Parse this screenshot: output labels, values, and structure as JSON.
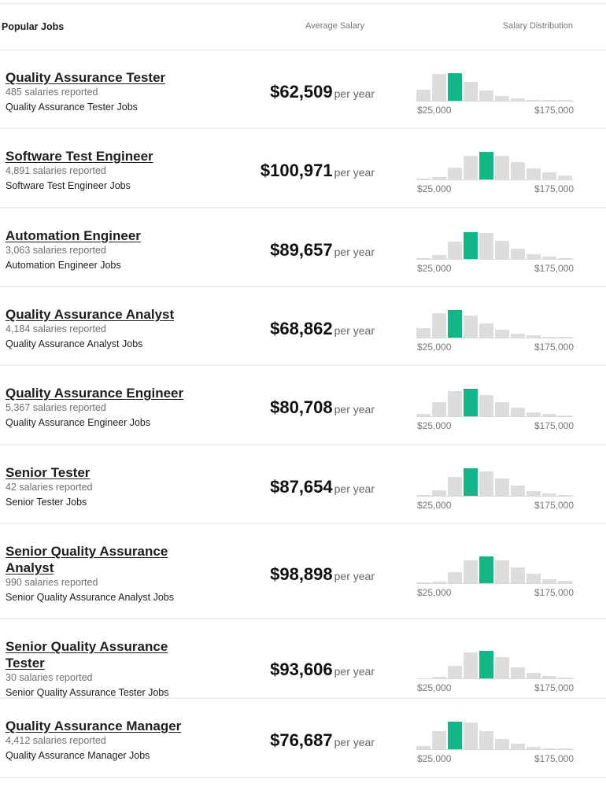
{
  "header": {
    "popular_jobs": "Popular Jobs",
    "average_salary": "Average Salary",
    "salary_distribution": "Salary Distribution"
  },
  "colors": {
    "highlight_bar": "#11b686",
    "bar": "#dddddd"
  },
  "chart_data": [
    {
      "type": "bar",
      "job": "Quality Assurance Tester",
      "values": [
        0.4,
        0.95,
        0.97,
        0.66,
        0.36,
        0.17,
        0.08,
        0.04,
        0.03,
        0.02
      ],
      "highlight_index": 2,
      "xmin_label": "$25,000",
      "xmax_label": "$175,000"
    },
    {
      "type": "bar",
      "job": "Software Test Engineer",
      "values": [
        0.03,
        0.08,
        0.42,
        0.82,
        0.96,
        0.82,
        0.6,
        0.4,
        0.26,
        0.14
      ],
      "highlight_index": 4,
      "xmin_label": "$25,000",
      "xmax_label": "$175,000"
    },
    {
      "type": "bar",
      "job": "Automation Engineer",
      "values": [
        0.03,
        0.13,
        0.6,
        0.95,
        0.93,
        0.64,
        0.37,
        0.18,
        0.08,
        0.04
      ],
      "highlight_index": 3,
      "xmin_label": "$25,000",
      "xmax_label": "$175,000"
    },
    {
      "type": "bar",
      "job": "Quality Assurance Analyst",
      "values": [
        0.34,
        0.86,
        0.97,
        0.78,
        0.5,
        0.27,
        0.15,
        0.07,
        0.04,
        0.02
      ],
      "highlight_index": 2,
      "xmin_label": "$25,000",
      "xmax_label": "$175,000"
    },
    {
      "type": "bar",
      "job": "Quality Assurance Engineer",
      "values": [
        0.09,
        0.49,
        0.9,
        0.97,
        0.74,
        0.49,
        0.31,
        0.15,
        0.08,
        0.04
      ],
      "highlight_index": 3,
      "xmin_label": "$25,000",
      "xmax_label": "$175,000"
    },
    {
      "type": "bar",
      "job": "Senior Tester",
      "values": [
        0.04,
        0.2,
        0.66,
        0.97,
        0.86,
        0.62,
        0.35,
        0.18,
        0.09,
        0.04
      ],
      "highlight_index": 3,
      "xmin_label": "$25,000",
      "xmax_label": "$175,000"
    },
    {
      "type": "bar",
      "job": "Senior Quality Assurance Analyst",
      "values": [
        0.03,
        0.06,
        0.38,
        0.81,
        0.95,
        0.81,
        0.55,
        0.32,
        0.14,
        0.08
      ],
      "highlight_index": 4,
      "xmin_label": "$25,000",
      "xmax_label": "$175,000"
    },
    {
      "type": "bar",
      "job": "Senior Quality Assurance Tester",
      "values": [
        0.0,
        0.06,
        0.45,
        0.91,
        0.96,
        0.75,
        0.4,
        0.19,
        0.09,
        0.04
      ],
      "highlight_index": 4,
      "xmin_label": "$25,000",
      "xmax_label": "$175,000"
    },
    {
      "type": "bar",
      "job": "Quality Assurance Manager",
      "values": [
        0.12,
        0.63,
        0.98,
        0.95,
        0.63,
        0.36,
        0.19,
        0.08,
        0.04,
        0.03
      ],
      "highlight_index": 2,
      "xmin_label": "$25,000",
      "xmax_label": "$175,000"
    }
  ],
  "jobs": [
    {
      "title": "Quality Assurance Tester",
      "salaries_reported": "485 salaries reported",
      "jobs_link": "Quality Assurance Tester Jobs",
      "salary": "$62,509",
      "period": "per year"
    },
    {
      "title": "Software Test Engineer",
      "salaries_reported": "4,891 salaries reported",
      "jobs_link": "Software Test Engineer Jobs",
      "salary": "$100,971",
      "period": "per year"
    },
    {
      "title": "Automation Engineer",
      "salaries_reported": "3,063 salaries reported",
      "jobs_link": "Automation Engineer Jobs",
      "salary": "$89,657",
      "period": "per year"
    },
    {
      "title": "Quality Assurance Analyst",
      "salaries_reported": "4,184 salaries reported",
      "jobs_link": "Quality Assurance Analyst Jobs",
      "salary": "$68,862",
      "period": "per year"
    },
    {
      "title": "Quality Assurance Engineer",
      "salaries_reported": "5,367 salaries reported",
      "jobs_link": "Quality Assurance Engineer Jobs",
      "salary": "$80,708",
      "period": "per year"
    },
    {
      "title": "Senior Tester",
      "salaries_reported": "42 salaries reported",
      "jobs_link": "Senior Tester Jobs",
      "salary": "$87,654",
      "period": "per year"
    },
    {
      "title": "Senior Quality Assurance Analyst",
      "salaries_reported": "990 salaries reported",
      "jobs_link": "Senior Quality Assurance Analyst Jobs",
      "salary": "$98,898",
      "period": "per year"
    },
    {
      "title": "Senior Quality Assurance Tester",
      "salaries_reported": "30 salaries reported",
      "jobs_link": "Senior Quality Assurance Tester Jobs",
      "salary": "$93,606",
      "period": "per year"
    },
    {
      "title": "Quality Assurance Manager",
      "salaries_reported": "4,412 salaries reported",
      "jobs_link": "Quality Assurance Manager Jobs",
      "salary": "$76,687",
      "period": "per year"
    }
  ]
}
